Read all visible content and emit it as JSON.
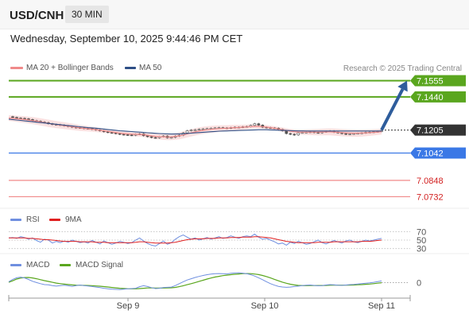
{
  "header": {
    "symbol": "USD/CNH",
    "timeframe": "30 MIN"
  },
  "datetime": "Wednesday, September 10, 2025 9:44:46 PM CET",
  "research_text": "Research © 2025 Trading Central",
  "colors": {
    "ma20": "#f08a8a",
    "ma50": "#2e4f86",
    "resistance": "#5aa61e",
    "support_blue": "#3a78e6",
    "support_red": "#f08a8a",
    "current": "#333333",
    "arrow": "#2e5d9c",
    "rsi": "#6f8fe0",
    "rsi_ma": "#e02020",
    "macd": "#6f8fe0",
    "macd_signal": "#5aa61e"
  },
  "chart_data": [
    {
      "type": "line",
      "panel": "price",
      "legend": [
        "MA 20 + Bollinger Bands",
        "MA 50"
      ],
      "x_ticks": [
        "Sep 9",
        "Sep 10",
        "Sep 11"
      ],
      "ylim": [
        7.065,
        7.162
      ],
      "levels": [
        {
          "label": "7.1555",
          "value": 7.1555,
          "kind": "resistance"
        },
        {
          "label": "7.1440",
          "value": 7.144,
          "kind": "resistance"
        },
        {
          "label": "7.1205",
          "value": 7.1205,
          "kind": "current"
        },
        {
          "label": "7.1042",
          "value": 7.1042,
          "kind": "support_blue"
        },
        {
          "label": "7.0848",
          "value": 7.0848,
          "kind": "support_red"
        },
        {
          "label": "7.0732",
          "value": 7.0732,
          "kind": "support_red"
        }
      ],
      "price_x": [
        0,
        5,
        10,
        15,
        20,
        25,
        30,
        35,
        40,
        45,
        50,
        55,
        60,
        65,
        70,
        75,
        80,
        85,
        90,
        95,
        100,
        105,
        110,
        115,
        120,
        125,
        130,
        135,
        140,
        145,
        150,
        155,
        160,
        165,
        170,
        175,
        180,
        185,
        190,
        195,
        200,
        205,
        210,
        215,
        220,
        225,
        230,
        235,
        240,
        245,
        250,
        255,
        260,
        265,
        270,
        275,
        280,
        285,
        290,
        295,
        300,
        305,
        310,
        315,
        320,
        325,
        330,
        335,
        340,
        345,
        350,
        355,
        360,
        365,
        370,
        375,
        380,
        385,
        390,
        395,
        400,
        405,
        410,
        415,
        420,
        425,
        430,
        435,
        440,
        445,
        450,
        455,
        460,
        465,
        470
      ],
      "price": [
        7.13,
        7.1295,
        7.129,
        7.1288,
        7.1285,
        7.128,
        7.1272,
        7.1268,
        7.1262,
        7.1258,
        7.125,
        7.1245,
        7.1243,
        7.124,
        7.1235,
        7.123,
        7.1225,
        7.1222,
        7.122,
        7.1216,
        7.1215,
        7.121,
        7.1205,
        7.12,
        7.1193,
        7.1188,
        7.1185,
        7.118,
        7.1175,
        7.1172,
        7.117,
        7.1168,
        7.1175,
        7.1178,
        7.1165,
        7.1158,
        7.1152,
        7.115,
        7.1158,
        7.1163,
        7.115,
        7.1153,
        7.1162,
        7.1168,
        7.1185,
        7.12,
        7.1205,
        7.1207,
        7.121,
        7.1213,
        7.1215,
        7.1218,
        7.122,
        7.1222,
        7.122,
        7.1218,
        7.1222,
        7.1225,
        7.1225,
        7.1228,
        7.123,
        7.1238,
        7.125,
        7.124,
        7.1225,
        7.1222,
        7.122,
        7.1218,
        7.121,
        7.12,
        7.118,
        7.1175,
        7.117,
        7.1185,
        7.1188,
        7.119,
        7.1192,
        7.1188,
        7.1185,
        7.1192,
        7.1195,
        7.1198,
        7.119,
        7.1185,
        7.118,
        7.1175,
        7.1178,
        7.118,
        7.1182,
        7.1185,
        7.1188,
        7.119,
        7.1192,
        7.1195,
        7.12
      ],
      "ma20": [
        7.129,
        7.1288,
        7.1285,
        7.1282,
        7.128,
        7.1276,
        7.1272,
        7.1268,
        7.1263,
        7.1258,
        7.1253,
        7.1248,
        7.1244,
        7.124,
        7.1236,
        7.1232,
        7.1228,
        7.1224,
        7.122,
        7.1217,
        7.1214,
        7.1211,
        7.1208,
        7.1204,
        7.12,
        7.1196,
        7.1192,
        7.1188,
        7.1184,
        7.118,
        7.1178,
        7.1176,
        7.1175,
        7.1174,
        7.1172,
        7.1168,
        7.1164,
        7.116,
        7.1158,
        7.1157,
        7.1156,
        7.1157,
        7.116,
        7.1164,
        7.117,
        7.1178,
        7.1185,
        7.1192,
        7.1198,
        7.1203,
        7.1207,
        7.121,
        7.1213,
        7.1215,
        7.1217,
        7.1218,
        7.122,
        7.1222,
        7.1223,
        7.1225,
        7.1227,
        7.1229,
        7.1231,
        7.1231,
        7.1229,
        7.1226,
        7.1222,
        7.1218,
        7.1213,
        7.1208,
        7.1202,
        7.1197,
        7.1193,
        7.1191,
        7.119,
        7.119,
        7.119,
        7.119,
        7.119,
        7.1191,
        7.1192,
        7.1192,
        7.1191,
        7.1189,
        7.1187,
        7.1185,
        7.1184,
        7.1183,
        7.1183,
        7.1184,
        7.1185,
        7.1187,
        7.1189,
        7.1191,
        7.1193
      ],
      "ma50": [
        7.1282,
        7.1279,
        7.1276,
        7.1273,
        7.127,
        7.1267,
        7.1264,
        7.1261,
        7.1258,
        7.1255,
        7.1252,
        7.1249,
        7.1246,
        7.1243,
        7.124,
        7.1237,
        7.1234,
        7.1231,
        7.1228,
        7.1225,
        7.1222,
        7.122,
        7.1218,
        7.1215,
        7.1212,
        7.1209,
        7.1206,
        7.1203,
        7.12,
        7.1198,
        7.1196,
        7.1194,
        7.1192,
        7.119,
        7.1188,
        7.1186,
        7.1184,
        7.1182,
        7.118,
        7.1179,
        7.1178,
        7.1177,
        7.1177,
        7.1178,
        7.1179,
        7.1181,
        7.1183,
        7.1185,
        7.1187,
        7.1189,
        7.1191,
        7.1193,
        7.1195,
        7.1197,
        7.1198,
        7.1199,
        7.12,
        7.1201,
        7.1202,
        7.1203,
        7.1204,
        7.1205,
        7.1206,
        7.1207,
        7.1207,
        7.1207,
        7.1206,
        7.1205,
        7.1204,
        7.1203,
        7.1202,
        7.1201,
        7.12,
        7.1199,
        7.1199,
        7.1198,
        7.1198,
        7.1198,
        7.1198,
        7.1198,
        7.1198,
        7.1198,
        7.1198,
        7.1198,
        7.1198,
        7.1198,
        7.1198,
        7.1198,
        7.1198,
        7.1198,
        7.1198,
        7.1198,
        7.1198,
        7.1198,
        7.1199
      ],
      "forecast": {
        "from": 7.1205,
        "to": 7.1555
      }
    },
    {
      "type": "line",
      "panel": "rsi",
      "legend": [
        "RSI",
        "9MA"
      ],
      "ticks": [
        "70",
        "50",
        "30"
      ],
      "ylim": [
        20,
        80
      ],
      "rsi": [
        55,
        56,
        54,
        58,
        56,
        52,
        55,
        49,
        45,
        52,
        50,
        43,
        47,
        44,
        48,
        45,
        50,
        47,
        44,
        46,
        43,
        49,
        45,
        41,
        48,
        44,
        40,
        43,
        47,
        45,
        42,
        44,
        50,
        55,
        48,
        42,
        38,
        36,
        42,
        48,
        40,
        44,
        52,
        58,
        62,
        57,
        52,
        55,
        50,
        53,
        56,
        52,
        55,
        58,
        54,
        56,
        60,
        57,
        54,
        58,
        60,
        58,
        64,
        57,
        52,
        54,
        50,
        46,
        41,
        43,
        38,
        45,
        42,
        47,
        44,
        40,
        42,
        46,
        50,
        44,
        41,
        45,
        49,
        46,
        43,
        48,
        50,
        46,
        44,
        47,
        50,
        48,
        50,
        52,
        54
      ],
      "rsi_ma": [
        55,
        55,
        55,
        55,
        55,
        54,
        54,
        53,
        52,
        51,
        51,
        50,
        49,
        48,
        47,
        47,
        47,
        47,
        46,
        46,
        46,
        46,
        45,
        45,
        45,
        44,
        44,
        44,
        44,
        44,
        44,
        44,
        45,
        46,
        46,
        45,
        44,
        43,
        43,
        43,
        43,
        44,
        45,
        47,
        49,
        51,
        52,
        53,
        53,
        53,
        54,
        54,
        54,
        55,
        55,
        55,
        56,
        56,
        56,
        57,
        57,
        57,
        58,
        58,
        57,
        56,
        55,
        53,
        51,
        49,
        47,
        46,
        45,
        44,
        44,
        44,
        44,
        44,
        45,
        45,
        45,
        45,
        46,
        46,
        46,
        46,
        46,
        46,
        46,
        47,
        47,
        47,
        48,
        49,
        50
      ]
    },
    {
      "type": "line",
      "panel": "macd",
      "legend": [
        "MACD",
        "MACD Signal"
      ],
      "ticks": [
        "0"
      ],
      "ylim": [
        -1.2,
        1.3
      ],
      "macd": [
        0.1,
        0.35,
        0.52,
        0.58,
        0.5,
        0.34,
        0.15,
        0.02,
        -0.1,
        -0.2,
        -0.22,
        -0.3,
        -0.36,
        -0.3,
        -0.26,
        -0.32,
        -0.38,
        -0.3,
        -0.25,
        -0.3,
        -0.35,
        -0.4,
        -0.46,
        -0.52,
        -0.58,
        -0.64,
        -0.68,
        -0.7,
        -0.72,
        -0.68,
        -0.64,
        -0.62,
        -0.58,
        -0.42,
        -0.32,
        -0.4,
        -0.52,
        -0.62,
        -0.58,
        -0.5,
        -0.48,
        -0.46,
        -0.3,
        -0.1,
        0.1,
        0.28,
        0.42,
        0.55,
        0.66,
        0.76,
        0.84,
        0.9,
        0.94,
        0.96,
        0.95,
        0.92,
        0.98,
        1.02,
        1.04,
        1.0,
        0.94,
        0.84,
        0.7,
        0.52,
        0.32,
        0.1,
        -0.1,
        -0.26,
        -0.38,
        -0.45,
        -0.48,
        -0.46,
        -0.4,
        -0.36,
        -0.3,
        -0.26,
        -0.24,
        -0.28,
        -0.32,
        -0.3,
        -0.24,
        -0.2,
        -0.22,
        -0.26,
        -0.28,
        -0.24,
        -0.2,
        -0.18,
        -0.14,
        -0.1,
        -0.06,
        -0.02,
        0.04,
        0.12,
        0.18
      ],
      "macd_signal": [
        0.05,
        0.2,
        0.38,
        0.48,
        0.54,
        0.55,
        0.5,
        0.42,
        0.32,
        0.22,
        0.13,
        0.04,
        -0.04,
        -0.1,
        -0.15,
        -0.19,
        -0.23,
        -0.26,
        -0.27,
        -0.28,
        -0.29,
        -0.31,
        -0.34,
        -0.37,
        -0.41,
        -0.45,
        -0.5,
        -0.54,
        -0.58,
        -0.61,
        -0.63,
        -0.64,
        -0.64,
        -0.62,
        -0.58,
        -0.55,
        -0.55,
        -0.56,
        -0.57,
        -0.56,
        -0.55,
        -0.53,
        -0.49,
        -0.42,
        -0.32,
        -0.21,
        -0.1,
        0.02,
        0.14,
        0.26,
        0.38,
        0.49,
        0.59,
        0.67,
        0.74,
        0.79,
        0.84,
        0.88,
        0.92,
        0.95,
        0.96,
        0.95,
        0.91,
        0.85,
        0.76,
        0.64,
        0.5,
        0.35,
        0.2,
        0.06,
        -0.06,
        -0.16,
        -0.23,
        -0.28,
        -0.3,
        -0.31,
        -0.3,
        -0.29,
        -0.29,
        -0.29,
        -0.28,
        -0.27,
        -0.26,
        -0.26,
        -0.26,
        -0.26,
        -0.25,
        -0.24,
        -0.22,
        -0.2,
        -0.17,
        -0.14,
        -0.1,
        -0.05,
        0.0
      ]
    }
  ]
}
